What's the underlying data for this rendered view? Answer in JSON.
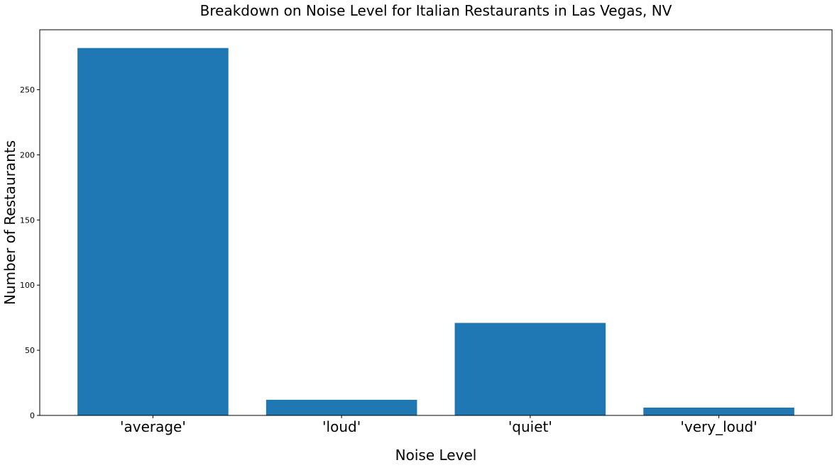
{
  "chart_data": {
    "type": "bar",
    "title": "Breakdown on Noise Level for Italian Restaurants in Las Vegas, NV",
    "xlabel": "Noise Level",
    "ylabel": "Number of Restaurants",
    "categories": [
      "'average'",
      "'loud'",
      "'quiet'",
      "'very_loud'"
    ],
    "values": [
      282,
      12,
      71,
      6
    ],
    "ylim": [
      0,
      296
    ],
    "yticks": [
      0,
      50,
      100,
      150,
      200,
      250
    ],
    "bar_color": "#1f77b4",
    "grid": false,
    "legend": "none"
  }
}
